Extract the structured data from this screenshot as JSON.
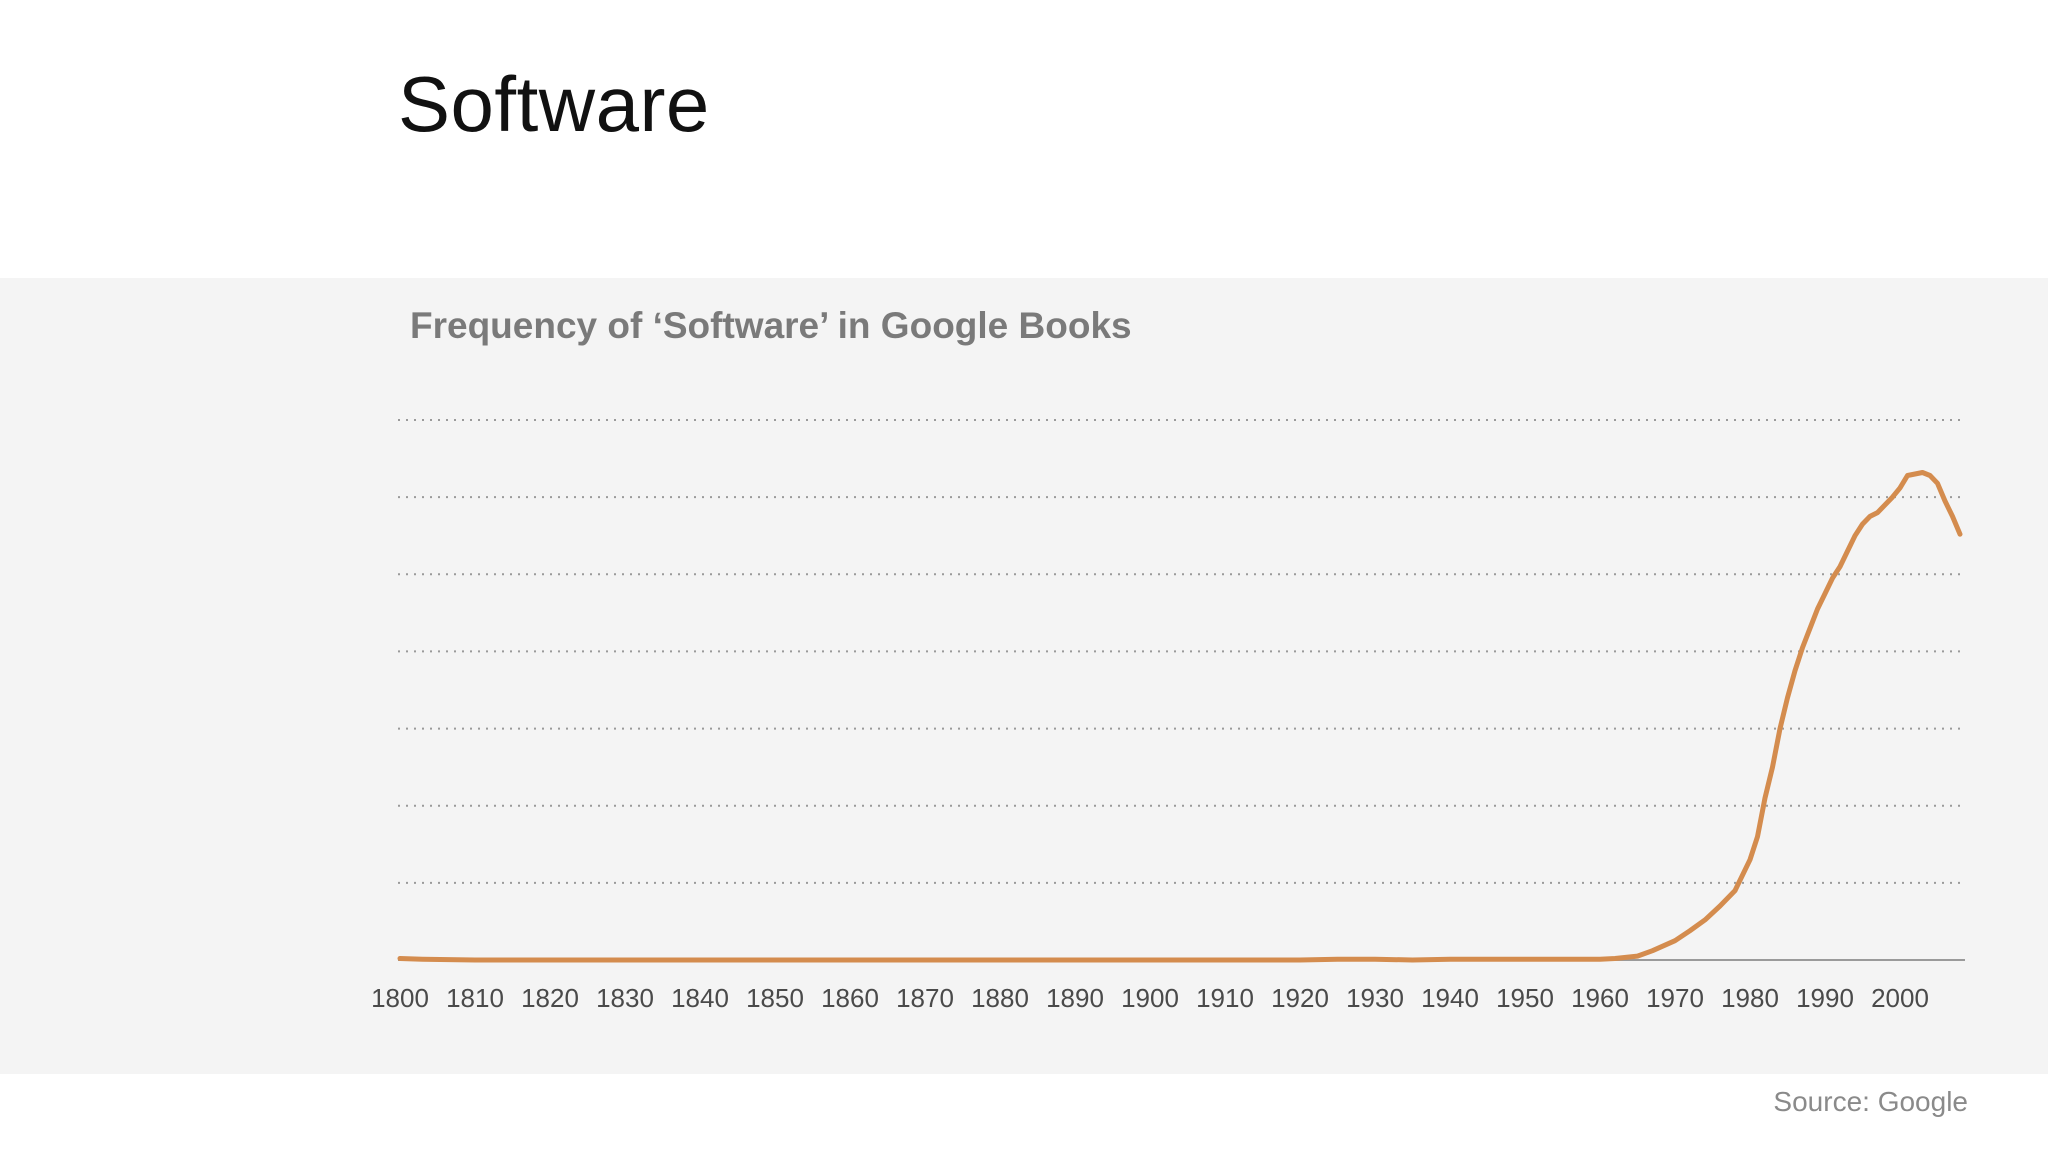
{
  "slide": {
    "title": "Software",
    "source": "Source: Google"
  },
  "colors": {
    "line": "#d48c4e",
    "band": "#f4f4f4",
    "grid": "#9a9a9a",
    "axis": "#9a9a9a"
  },
  "chart_data": {
    "type": "line",
    "title": "Frequency of ‘Software’ in Google Books",
    "xlabel": "",
    "ylabel": "",
    "x_ticks": [
      1800,
      1810,
      1820,
      1830,
      1840,
      1850,
      1860,
      1870,
      1880,
      1890,
      1900,
      1910,
      1920,
      1930,
      1940,
      1950,
      1960,
      1970,
      1980,
      1990,
      2000
    ],
    "xlim": [
      1800,
      2008
    ],
    "ylim": [
      0,
      7
    ],
    "grid": "horizontal dotted",
    "gridlines": [
      1,
      2,
      3,
      4,
      5,
      6,
      7
    ],
    "series": [
      {
        "points": [
          [
            1800,
            0.02
          ],
          [
            1803,
            0.01
          ],
          [
            1810,
            0.0
          ],
          [
            1820,
            0.0
          ],
          [
            1830,
            0.0
          ],
          [
            1840,
            0.0
          ],
          [
            1850,
            0.0
          ],
          [
            1860,
            0.0
          ],
          [
            1870,
            0.0
          ],
          [
            1880,
            0.0
          ],
          [
            1890,
            0.0
          ],
          [
            1900,
            0.0
          ],
          [
            1910,
            0.0
          ],
          [
            1920,
            0.0
          ],
          [
            1925,
            0.01
          ],
          [
            1930,
            0.01
          ],
          [
            1935,
            0.0
          ],
          [
            1940,
            0.01
          ],
          [
            1950,
            0.01
          ],
          [
            1955,
            0.01
          ],
          [
            1960,
            0.01
          ],
          [
            1962,
            0.02
          ],
          [
            1965,
            0.05
          ],
          [
            1967,
            0.12
          ],
          [
            1970,
            0.25
          ],
          [
            1972,
            0.38
          ],
          [
            1974,
            0.52
          ],
          [
            1976,
            0.7
          ],
          [
            1978,
            0.9
          ],
          [
            1980,
            1.3
          ],
          [
            1981,
            1.6
          ],
          [
            1982,
            2.1
          ],
          [
            1983,
            2.5
          ],
          [
            1984,
            3.0
          ],
          [
            1985,
            3.4
          ],
          [
            1986,
            3.75
          ],
          [
            1987,
            4.05
          ],
          [
            1988,
            4.3
          ],
          [
            1989,
            4.55
          ],
          [
            1990,
            4.75
          ],
          [
            1991,
            4.95
          ],
          [
            1992,
            5.1
          ],
          [
            1993,
            5.3
          ],
          [
            1994,
            5.5
          ],
          [
            1995,
            5.65
          ],
          [
            1996,
            5.75
          ],
          [
            1997,
            5.8
          ],
          [
            1998,
            5.9
          ],
          [
            1999,
            6.0
          ],
          [
            2000,
            6.12
          ],
          [
            2001,
            6.28
          ],
          [
            2002,
            6.3
          ],
          [
            2003,
            6.32
          ],
          [
            2004,
            6.28
          ],
          [
            2005,
            6.18
          ],
          [
            2006,
            5.95
          ],
          [
            2007,
            5.75
          ],
          [
            2008,
            5.52
          ]
        ]
      }
    ]
  }
}
